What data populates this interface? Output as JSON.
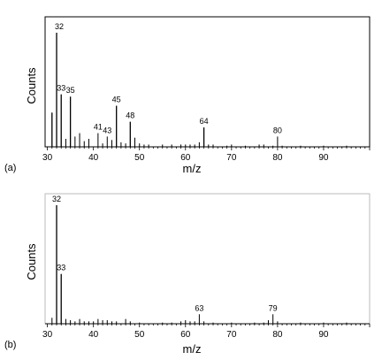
{
  "chart_data": [
    {
      "type": "bar",
      "panel_label": "(a)",
      "xlabel": "m/z",
      "ylabel": "Counts",
      "xlim": [
        29.5,
        100
      ],
      "xticks": [
        30,
        40,
        50,
        60,
        70,
        80,
        90
      ],
      "ylim": [
        0,
        100
      ],
      "peaks": [
        {
          "x": 31,
          "y": 30
        },
        {
          "x": 32,
          "y": 100,
          "label": "32"
        },
        {
          "x": 33,
          "y": 46,
          "label": "33"
        },
        {
          "x": 34,
          "y": 7
        },
        {
          "x": 35,
          "y": 44,
          "label": "35"
        },
        {
          "x": 36,
          "y": 9
        },
        {
          "x": 37,
          "y": 12
        },
        {
          "x": 38,
          "y": 5
        },
        {
          "x": 39,
          "y": 7
        },
        {
          "x": 41,
          "y": 12,
          "label": "41"
        },
        {
          "x": 42,
          "y": 3
        },
        {
          "x": 43,
          "y": 9,
          "label": "43"
        },
        {
          "x": 44,
          "y": 6
        },
        {
          "x": 45,
          "y": 36,
          "label": "45"
        },
        {
          "x": 46,
          "y": 4
        },
        {
          "x": 47,
          "y": 3
        },
        {
          "x": 48,
          "y": 22,
          "label": "48"
        },
        {
          "x": 49,
          "y": 8
        },
        {
          "x": 50,
          "y": 3
        },
        {
          "x": 51,
          "y": 2
        },
        {
          "x": 52,
          "y": 2
        },
        {
          "x": 55,
          "y": 2
        },
        {
          "x": 57,
          "y": 2
        },
        {
          "x": 59,
          "y": 2
        },
        {
          "x": 60,
          "y": 2
        },
        {
          "x": 61,
          "y": 2
        },
        {
          "x": 62,
          "y": 2
        },
        {
          "x": 63,
          "y": 4
        },
        {
          "x": 64,
          "y": 17,
          "label": "64"
        },
        {
          "x": 65,
          "y": 2
        },
        {
          "x": 66,
          "y": 2
        },
        {
          "x": 69,
          "y": 1
        },
        {
          "x": 70,
          "y": 2
        },
        {
          "x": 73,
          "y": 1
        },
        {
          "x": 76,
          "y": 2
        },
        {
          "x": 77,
          "y": 2
        },
        {
          "x": 79,
          "y": 1
        },
        {
          "x": 80,
          "y": 9,
          "label": "80"
        },
        {
          "x": 81,
          "y": 1
        },
        {
          "x": 85,
          "y": 1
        },
        {
          "x": 90,
          "y": 1
        },
        {
          "x": 95,
          "y": 1
        }
      ]
    },
    {
      "type": "bar",
      "panel_label": "(b)",
      "xlabel": "m/z",
      "ylabel": "Counts",
      "xlim": [
        29.5,
        100
      ],
      "xticks": [
        30,
        40,
        50,
        60,
        70,
        80,
        90
      ],
      "ylim": [
        0,
        100
      ],
      "peaks": [
        {
          "x": 31,
          "y": 5
        },
        {
          "x": 32,
          "y": 100,
          "label": "32"
        },
        {
          "x": 33,
          "y": 42,
          "label": "33"
        },
        {
          "x": 34,
          "y": 4
        },
        {
          "x": 35,
          "y": 3
        },
        {
          "x": 36,
          "y": 2
        },
        {
          "x": 37,
          "y": 4
        },
        {
          "x": 38,
          "y": 2
        },
        {
          "x": 39,
          "y": 2
        },
        {
          "x": 40,
          "y": 2
        },
        {
          "x": 41,
          "y": 4
        },
        {
          "x": 42,
          "y": 3
        },
        {
          "x": 43,
          "y": 3
        },
        {
          "x": 44,
          "y": 2
        },
        {
          "x": 45,
          "y": 2
        },
        {
          "x": 47,
          "y": 4
        },
        {
          "x": 48,
          "y": 2
        },
        {
          "x": 50,
          "y": 1
        },
        {
          "x": 55,
          "y": 1
        },
        {
          "x": 57,
          "y": 1
        },
        {
          "x": 59,
          "y": 2
        },
        {
          "x": 60,
          "y": 3
        },
        {
          "x": 61,
          "y": 2
        },
        {
          "x": 62,
          "y": 2
        },
        {
          "x": 63,
          "y": 8,
          "label": "63"
        },
        {
          "x": 64,
          "y": 2
        },
        {
          "x": 66,
          "y": 1
        },
        {
          "x": 70,
          "y": 1
        },
        {
          "x": 75,
          "y": 1
        },
        {
          "x": 77,
          "y": 1
        },
        {
          "x": 78,
          "y": 3
        },
        {
          "x": 79,
          "y": 8,
          "label": "79"
        },
        {
          "x": 80,
          "y": 2
        },
        {
          "x": 85,
          "y": 1
        },
        {
          "x": 90,
          "y": 1
        },
        {
          "x": 95,
          "y": 1
        }
      ]
    }
  ]
}
